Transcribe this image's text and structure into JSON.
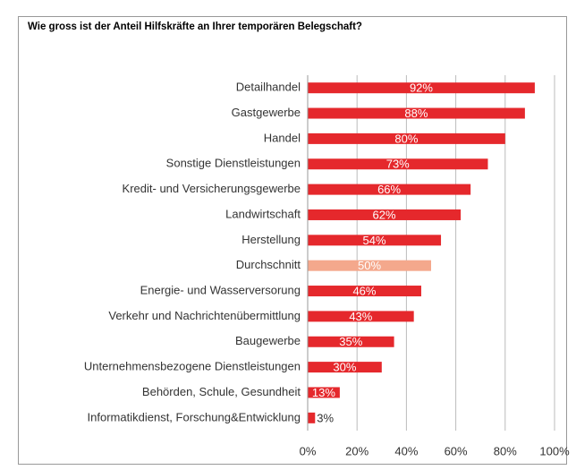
{
  "chart_data": {
    "type": "barh",
    "title": "Wie gross ist der Anteil Hilfskräfte an Ihrer temporären Belegschaft?",
    "categories": [
      "Detailhandel",
      "Gastgewerbe",
      "Handel",
      "Sonstige Dienstleistungen",
      "Kredit- und Versicherungsgewerbe",
      "Landwirtschaft",
      "Herstellung",
      "Durchschnitt",
      "Energie- und Wasserversorung",
      "Verkehr und Nachrichtenübermittlung",
      "Baugewerbe",
      "Unternehmensbezogene Dienstleistungen",
      "Behörden, Schule, Gesundheit",
      "Informatikdienst, Forschung&Entwicklung"
    ],
    "values": [
      92,
      88,
      80,
      73,
      66,
      62,
      54,
      50,
      46,
      43,
      35,
      30,
      13,
      3
    ],
    "value_labels": [
      "92%",
      "88%",
      "80%",
      "73%",
      "66%",
      "62%",
      "54%",
      "50%",
      "46%",
      "43%",
      "35%",
      "30%",
      "13%",
      "3%"
    ],
    "colors": [
      "#e5282c",
      "#e5282c",
      "#e5282c",
      "#e5282c",
      "#e5282c",
      "#e5282c",
      "#e5282c",
      "#f4a88c",
      "#e5282c",
      "#e5282c",
      "#e5282c",
      "#e5282c",
      "#e5282c",
      "#e5282c"
    ],
    "xlim": [
      0,
      100
    ],
    "xticks": [
      {
        "value": 0,
        "label": "0%"
      },
      {
        "value": 20,
        "label": "20%"
      },
      {
        "value": 40,
        "label": "40%"
      },
      {
        "value": 60,
        "label": "60%"
      },
      {
        "value": 80,
        "label": "80%"
      },
      {
        "value": 100,
        "label": "100%"
      }
    ],
    "grid": true
  }
}
